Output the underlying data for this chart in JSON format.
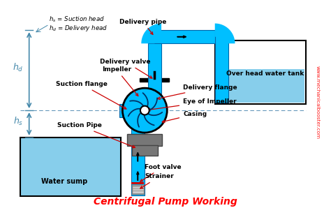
{
  "bg_color": "#ffffff",
  "pipe_color": "#00BFFF",
  "water_color": "#00BFFF",
  "water_fill": "#87CEEB",
  "gray_base": "#777777",
  "red_flange": "#CC0000",
  "black": "#000000",
  "title": "Centrifugal Pump Working",
  "title_color": "#FF0000",
  "watermark": "www.mechanicalbooster.com",
  "dim_color": "#4488AA",
  "labels": {
    "delivery_pipe": "Delivery pipe",
    "delivery_valve": "Delivery valve",
    "impeller": "Impeller",
    "suction_flange": "Suction flange",
    "delivery_flange": "Delivery flange",
    "overhead_tank": "Over head water tank",
    "eye_impeller": "Eye of Impeller",
    "casing": "Casing",
    "suction_pipe": "Suction Pipe",
    "foot_valve": "Foot valve",
    "strainer": "Strainer",
    "water_sump": "Water sump"
  },
  "figsize": [
    4.74,
    2.98
  ],
  "dpi": 100
}
